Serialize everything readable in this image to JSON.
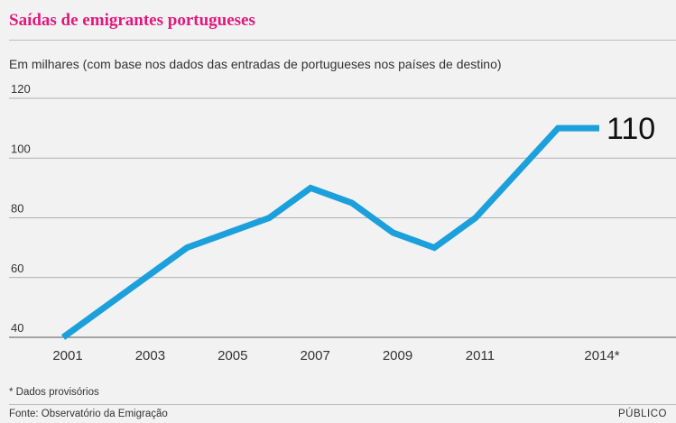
{
  "header": {
    "title": "Saídas de emigrantes portugueses",
    "subtitle": "Em milhares (com base nos dados das entradas de portugueses nos países de destino)"
  },
  "footer": {
    "footnote": "* Dados provisórios",
    "source": "Fonte: Observatório da Emigração",
    "brand": "PÚBLICO"
  },
  "colors": {
    "line": "#1ba0dc",
    "title": "#e0197d",
    "grid": "#9a9a9a",
    "background": "#f2f2f2"
  },
  "chart_data": {
    "type": "line",
    "x": [
      2001,
      2002,
      2003,
      2004,
      2005,
      2006,
      2007,
      2008,
      2009,
      2010,
      2011,
      2012,
      2013,
      2014
    ],
    "series": [
      {
        "values": [
          40,
          50,
          60,
          70,
          75,
          80,
          90,
          85,
          75,
          70,
          80,
          95,
          110,
          110
        ]
      }
    ],
    "x_tick_labels": [
      {
        "x": 2001,
        "label": "2001"
      },
      {
        "x": 2003,
        "label": "2003"
      },
      {
        "x": 2005,
        "label": "2005"
      },
      {
        "x": 2007,
        "label": "2007"
      },
      {
        "x": 2009,
        "label": "2009"
      },
      {
        "x": 2011,
        "label": "2011"
      },
      {
        "x": 2014,
        "label": "2014*"
      }
    ],
    "y_ticks": [
      40,
      60,
      80,
      100,
      120
    ],
    "ylim": [
      40,
      120
    ],
    "end_label": "110",
    "grid": true
  }
}
